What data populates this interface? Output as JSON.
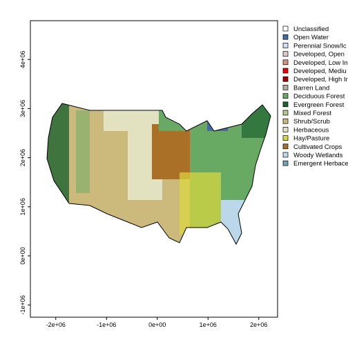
{
  "axes": {
    "xlim": [
      -2500000,
      2370000
    ],
    "ylim": [
      -1250000,
      4790000
    ],
    "xticks": [
      {
        "value": -2000000,
        "label": "-2e+06"
      },
      {
        "value": -1000000,
        "label": "-1e+06"
      },
      {
        "value": 0,
        "label": "0e+00"
      },
      {
        "value": 1000000,
        "label": "1e+06"
      },
      {
        "value": 2000000,
        "label": "2e+06"
      }
    ],
    "yticks": [
      {
        "value": -1000000,
        "label": "-1e+06"
      },
      {
        "value": 0,
        "label": "0e+00"
      },
      {
        "value": 1000000,
        "label": "1e+06"
      },
      {
        "value": 2000000,
        "label": "2e+06"
      },
      {
        "value": 3000000,
        "label": "3e+06"
      },
      {
        "value": 4000000,
        "label": "4e+06"
      }
    ]
  },
  "legend": {
    "items": [
      {
        "label": "Unclassified",
        "color": "#ffffff"
      },
      {
        "label": "Open Water",
        "color": "#476ba1"
      },
      {
        "label": "Perennial Snow/Ic",
        "color": "#d1defa"
      },
      {
        "label": "Developed, Open",
        "color": "#ddc9c9"
      },
      {
        "label": "Developed, Low In",
        "color": "#d89382"
      },
      {
        "label": "Developed, Mediu",
        "color": "#ed0000"
      },
      {
        "label": "Developed, High In",
        "color": "#aa0000"
      },
      {
        "label": "Barren Land",
        "color": "#b2ada3"
      },
      {
        "label": "Deciduous Forest",
        "color": "#68aa63"
      },
      {
        "label": "Evergreen Forest",
        "color": "#1c6330"
      },
      {
        "label": "Mixed Forest",
        "color": "#b5c98e"
      },
      {
        "label": "Shrub/Scrub",
        "color": "#ccba7c"
      },
      {
        "label": "Herbaceous",
        "color": "#e2e2c1"
      },
      {
        "label": "Hay/Pasture",
        "color": "#dbd83d"
      },
      {
        "label": "Cultivated Crops",
        "color": "#ab7028"
      },
      {
        "label": "Woody Wetlands",
        "color": "#bad8ea"
      },
      {
        "label": "Emergent Herbace",
        "color": "#70a3ba"
      }
    ]
  }
}
